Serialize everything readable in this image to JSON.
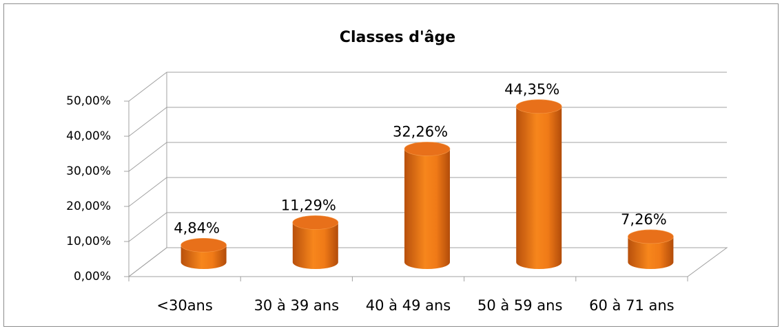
{
  "chart_data": {
    "type": "bar3d",
    "title": "Classes d'âge",
    "categories": [
      "<30ans",
      "30 à 39 ans",
      "40 à 49 ans",
      "50 à 59 ans",
      "60 à 71 ans"
    ],
    "values": [
      4.84,
      11.29,
      32.26,
      44.35,
      7.26
    ],
    "value_labels": [
      "4,84%",
      "11,29%",
      "32,26%",
      "44,35%",
      "7,26%"
    ],
    "color": "#e8701a",
    "ylim": [
      0,
      50
    ],
    "yticks": [
      {
        "value": 0,
        "label": "0,00%"
      },
      {
        "value": 10,
        "label": "10,00%"
      },
      {
        "value": 20,
        "label": "20,00%"
      },
      {
        "value": 30,
        "label": "30,00%"
      },
      {
        "value": 40,
        "label": "40,00%"
      },
      {
        "value": 50,
        "label": "50,00%"
      }
    ],
    "grid": true
  }
}
